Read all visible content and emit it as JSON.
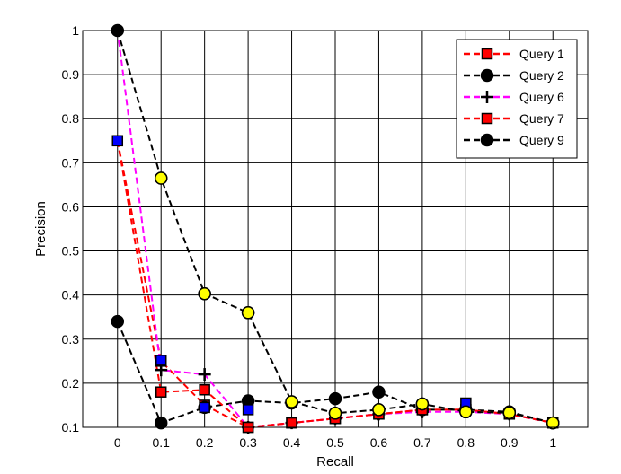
{
  "chart_data": {
    "type": "line",
    "title": "",
    "xlabel": "Recall",
    "ylabel": "Precision",
    "xlim": [
      -0.08,
      1.08
    ],
    "ylim": [
      0.1,
      1.0
    ],
    "x_ticks": [
      "0",
      "0.1",
      "0.2",
      "0.3",
      "0.4",
      "0.5",
      "0.6",
      "0.7",
      "0.8",
      "0.9",
      "1"
    ],
    "y_ticks": [
      "0.1",
      "0.2",
      "0.3",
      "0.4",
      "0.5",
      "0.6",
      "0.7",
      "0.8",
      "0.9",
      "1"
    ],
    "grid": true,
    "legend_position": "top-right",
    "series": [
      {
        "name": "Query 1",
        "line_color": "#ff0000",
        "line_style": "dashed",
        "marker": "square",
        "marker_fill": "#ff0000",
        "x": [
          0,
          0.1,
          0.2,
          0.3,
          0.4,
          0.5,
          0.6,
          0.7,
          0.8,
          0.9,
          1.0
        ],
        "y": [
          0.75,
          0.25,
          0.15,
          0.1,
          0.11,
          0.12,
          0.13,
          0.14,
          0.14,
          0.13,
          0.11
        ]
      },
      {
        "name": "Query 2",
        "line_color": "#000000",
        "line_style": "dashed",
        "marker": "circle",
        "marker_fill": "#000000",
        "x": [
          0,
          0.1,
          0.2,
          0.3,
          0.4,
          0.5,
          0.6,
          0.7,
          0.8,
          0.9,
          1.0
        ],
        "y": [
          0.34,
          0.11,
          0.145,
          0.16,
          0.155,
          0.165,
          0.18,
          0.14,
          0.14,
          0.135,
          0.11
        ]
      },
      {
        "name": "Query 6",
        "line_color": "#ff00ff",
        "line_style": "dashed",
        "marker": "plus",
        "marker_fill": "#000000",
        "x": [
          0,
          0.1,
          0.2,
          0.3,
          0.4,
          0.5,
          0.6,
          0.7,
          0.8,
          0.9,
          1.0
        ],
        "y": [
          1.0,
          0.23,
          0.22,
          0.1,
          0.11,
          0.12,
          0.13,
          0.135,
          0.135,
          0.13,
          0.11
        ]
      },
      {
        "name": "Query 7",
        "line_color": "#ff0000",
        "line_style": "dashed",
        "marker": "square",
        "marker_fill": "#ff0000",
        "x": [
          0,
          0.1,
          0.2,
          0.3,
          0.4,
          0.5,
          0.6,
          0.7,
          0.8,
          0.9,
          1.0
        ],
        "y": [
          0.75,
          0.18,
          0.185,
          0.1,
          0.11,
          0.12,
          0.13,
          0.14,
          0.14,
          0.13,
          0.11
        ]
      },
      {
        "name": "Query 9",
        "line_color": "#000000",
        "line_style": "dashed",
        "marker": "circle",
        "marker_fill": "#000000",
        "x": [
          0,
          0.1,
          0.2,
          0.3,
          0.4,
          0.5,
          0.6,
          0.7,
          0.8,
          0.9,
          1.0
        ],
        "y": [
          1.0,
          0.665,
          0.403,
          0.36,
          0.158,
          0.132,
          0.14,
          0.153,
          0.135,
          0.133,
          0.11
        ]
      }
    ],
    "extra_markers": [
      {
        "marker": "square",
        "fill": "#0000ff",
        "stroke": "#000000",
        "x": [
          0,
          0.1,
          0.2,
          0.3,
          0.8
        ],
        "y": [
          0.75,
          0.252,
          0.145,
          0.14,
          0.155
        ]
      },
      {
        "marker": "circle",
        "fill": "#ffff00",
        "stroke": "#000000",
        "x": [
          0.1,
          0.2,
          0.3,
          0.4,
          0.5,
          0.6,
          0.7,
          0.8,
          0.9,
          1.0
        ],
        "y": [
          0.665,
          0.403,
          0.36,
          0.158,
          0.132,
          0.14,
          0.153,
          0.135,
          0.133,
          0.11
        ]
      }
    ]
  }
}
